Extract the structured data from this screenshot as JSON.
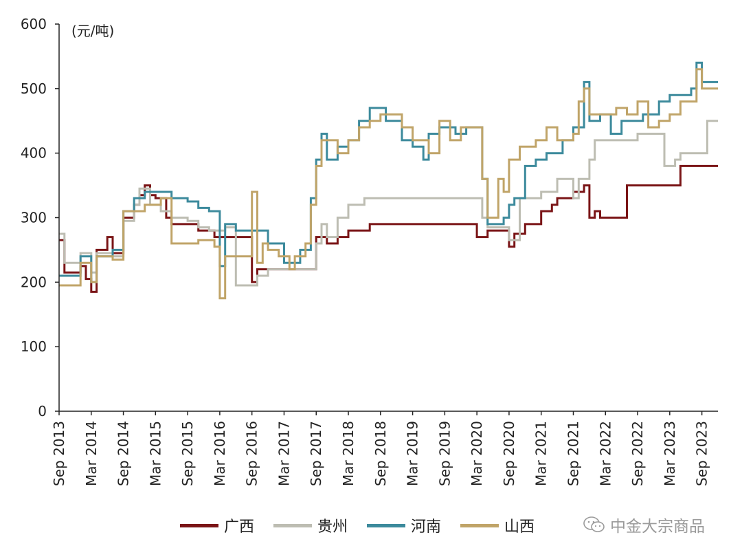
{
  "chart_data": {
    "type": "line",
    "ylabel": "(元/吨)",
    "ylim": [
      0,
      600
    ],
    "yticks": [
      0,
      100,
      200,
      300,
      400,
      500,
      600
    ],
    "xlim": [
      "2013-09",
      "2023-12"
    ],
    "xticks": [
      "Sep 2013",
      "Mar 2014",
      "Sep 2014",
      "Mar 2015",
      "Sep 2015",
      "Mar 2016",
      "Sep 2016",
      "Mar 2017",
      "Sep 2017",
      "Mar 2018",
      "Sep 2018",
      "Mar 2019",
      "Sep 2019",
      "Mar 2020",
      "Sep 2020",
      "Mar 2021",
      "Sep 2021",
      "Mar 2022",
      "Sep 2022",
      "Mar 2023",
      "Sep 2023"
    ],
    "grid": false,
    "legend_position": "bottom",
    "series": [
      {
        "name": "广西",
        "color": "#7a1416",
        "points": [
          [
            "2013-09",
            265
          ],
          [
            "2013-10",
            215
          ],
          [
            "2013-12",
            215
          ],
          [
            "2014-01",
            225
          ],
          [
            "2014-02",
            205
          ],
          [
            "2014-03",
            185
          ],
          [
            "2014-04",
            250
          ],
          [
            "2014-06",
            270
          ],
          [
            "2014-07",
            245
          ],
          [
            "2014-09",
            300
          ],
          [
            "2014-11",
            320
          ],
          [
            "2014-12",
            335
          ],
          [
            "2015-01",
            350
          ],
          [
            "2015-02",
            335
          ],
          [
            "2015-03",
            330
          ],
          [
            "2015-05",
            300
          ],
          [
            "2015-06",
            290
          ],
          [
            "2015-09",
            290
          ],
          [
            "2015-11",
            280
          ],
          [
            "2016-02",
            270
          ],
          [
            "2016-06",
            270
          ],
          [
            "2016-08",
            270
          ],
          [
            "2016-09",
            200
          ],
          [
            "2016-10",
            220
          ],
          [
            "2016-12",
            220
          ],
          [
            "2017-03",
            220
          ],
          [
            "2017-05",
            220
          ],
          [
            "2017-06",
            220
          ],
          [
            "2017-08",
            220
          ],
          [
            "2017-09",
            270
          ],
          [
            "2017-11",
            260
          ],
          [
            "2018-01",
            270
          ],
          [
            "2018-03",
            280
          ],
          [
            "2018-07",
            290
          ],
          [
            "2019-01",
            290
          ],
          [
            "2019-07",
            290
          ],
          [
            "2020-01",
            290
          ],
          [
            "2020-03",
            270
          ],
          [
            "2020-05",
            280
          ],
          [
            "2020-09",
            255
          ],
          [
            "2020-10",
            275
          ],
          [
            "2020-12",
            290
          ],
          [
            "2021-03",
            310
          ],
          [
            "2021-05",
            320
          ],
          [
            "2021-06",
            330
          ],
          [
            "2021-09",
            340
          ],
          [
            "2021-11",
            350
          ],
          [
            "2021-12",
            300
          ],
          [
            "2022-01",
            310
          ],
          [
            "2022-02",
            300
          ],
          [
            "2022-06",
            300
          ],
          [
            "2022-07",
            350
          ],
          [
            "2022-12",
            350
          ],
          [
            "2023-01",
            350
          ],
          [
            "2023-04",
            350
          ],
          [
            "2023-05",
            380
          ],
          [
            "2023-12",
            380
          ]
        ]
      },
      {
        "name": "贵州",
        "color": "#bdbdb2",
        "points": [
          [
            "2013-09",
            275
          ],
          [
            "2013-10",
            230
          ],
          [
            "2013-12",
            230
          ],
          [
            "2014-01",
            245
          ],
          [
            "2014-03",
            215
          ],
          [
            "2014-04",
            245
          ],
          [
            "2014-07",
            240
          ],
          [
            "2014-09",
            295
          ],
          [
            "2014-11",
            320
          ],
          [
            "2014-12",
            345
          ],
          [
            "2015-02",
            320
          ],
          [
            "2015-04",
            310
          ],
          [
            "2015-06",
            300
          ],
          [
            "2015-09",
            295
          ],
          [
            "2015-11",
            285
          ],
          [
            "2016-01",
            280
          ],
          [
            "2016-04",
            285
          ],
          [
            "2016-06",
            195
          ],
          [
            "2016-09",
            195
          ],
          [
            "2016-10",
            210
          ],
          [
            "2016-12",
            220
          ],
          [
            "2017-04",
            220
          ],
          [
            "2017-08",
            220
          ],
          [
            "2017-09",
            260
          ],
          [
            "2017-10",
            290
          ],
          [
            "2017-11",
            270
          ],
          [
            "2018-01",
            300
          ],
          [
            "2018-03",
            320
          ],
          [
            "2018-06",
            330
          ],
          [
            "2019-01",
            330
          ],
          [
            "2019-07",
            330
          ],
          [
            "2020-01",
            330
          ],
          [
            "2020-04",
            300
          ],
          [
            "2020-05",
            285
          ],
          [
            "2020-08",
            285
          ],
          [
            "2020-09",
            265
          ],
          [
            "2020-11",
            330
          ],
          [
            "2021-01",
            330
          ],
          [
            "2021-03",
            340
          ],
          [
            "2021-06",
            360
          ],
          [
            "2021-09",
            330
          ],
          [
            "2021-10",
            360
          ],
          [
            "2021-12",
            390
          ],
          [
            "2022-01",
            420
          ],
          [
            "2022-06",
            420
          ],
          [
            "2022-09",
            430
          ],
          [
            "2023-01",
            430
          ],
          [
            "2023-02",
            380
          ],
          [
            "2023-04",
            390
          ],
          [
            "2023-05",
            400
          ],
          [
            "2023-09",
            400
          ],
          [
            "2023-10",
            450
          ],
          [
            "2023-12",
            450
          ]
        ]
      },
      {
        "name": "河南",
        "color": "#3c8a9c",
        "points": [
          [
            "2013-09",
            210
          ],
          [
            "2013-12",
            210
          ],
          [
            "2014-01",
            240
          ],
          [
            "2014-03",
            200
          ],
          [
            "2014-04",
            240
          ],
          [
            "2014-07",
            250
          ],
          [
            "2014-09",
            310
          ],
          [
            "2014-11",
            330
          ],
          [
            "2015-01",
            340
          ],
          [
            "2015-04",
            340
          ],
          [
            "2015-06",
            330
          ],
          [
            "2015-09",
            325
          ],
          [
            "2015-11",
            315
          ],
          [
            "2016-01",
            310
          ],
          [
            "2016-03",
            225
          ],
          [
            "2016-04",
            290
          ],
          [
            "2016-06",
            280
          ],
          [
            "2016-09",
            280
          ],
          [
            "2016-12",
            260
          ],
          [
            "2017-03",
            230
          ],
          [
            "2017-06",
            250
          ],
          [
            "2017-08",
            330
          ],
          [
            "2017-09",
            390
          ],
          [
            "2017-10",
            430
          ],
          [
            "2017-11",
            390
          ],
          [
            "2018-01",
            410
          ],
          [
            "2018-03",
            420
          ],
          [
            "2018-05",
            450
          ],
          [
            "2018-07",
            470
          ],
          [
            "2018-10",
            450
          ],
          [
            "2019-01",
            420
          ],
          [
            "2019-03",
            410
          ],
          [
            "2019-05",
            390
          ],
          [
            "2019-06",
            430
          ],
          [
            "2019-08",
            440
          ],
          [
            "2019-11",
            430
          ],
          [
            "2020-01",
            440
          ],
          [
            "2020-03",
            440
          ],
          [
            "2020-04",
            360
          ],
          [
            "2020-05",
            290
          ],
          [
            "2020-08",
            300
          ],
          [
            "2020-09",
            320
          ],
          [
            "2020-10",
            330
          ],
          [
            "2020-12",
            380
          ],
          [
            "2021-02",
            390
          ],
          [
            "2021-04",
            400
          ],
          [
            "2021-07",
            420
          ],
          [
            "2021-09",
            440
          ],
          [
            "2021-11",
            510
          ],
          [
            "2021-12",
            450
          ],
          [
            "2022-02",
            460
          ],
          [
            "2022-04",
            430
          ],
          [
            "2022-06",
            450
          ],
          [
            "2022-10",
            460
          ],
          [
            "2023-01",
            480
          ],
          [
            "2023-03",
            490
          ],
          [
            "2023-07",
            500
          ],
          [
            "2023-08",
            540
          ],
          [
            "2023-09",
            510
          ],
          [
            "2023-12",
            510
          ]
        ]
      },
      {
        "name": "山西",
        "color": "#c0a468",
        "points": [
          [
            "2013-09",
            195
          ],
          [
            "2013-12",
            195
          ],
          [
            "2014-01",
            230
          ],
          [
            "2014-03",
            200
          ],
          [
            "2014-04",
            240
          ],
          [
            "2014-07",
            235
          ],
          [
            "2014-09",
            310
          ],
          [
            "2014-11",
            310
          ],
          [
            "2015-01",
            320
          ],
          [
            "2015-04",
            330
          ],
          [
            "2015-06",
            260
          ],
          [
            "2015-09",
            260
          ],
          [
            "2015-11",
            265
          ],
          [
            "2016-02",
            255
          ],
          [
            "2016-03",
            175
          ],
          [
            "2016-04",
            240
          ],
          [
            "2016-07",
            240
          ],
          [
            "2016-09",
            340
          ],
          [
            "2016-10",
            230
          ],
          [
            "2016-11",
            260
          ],
          [
            "2016-12",
            250
          ],
          [
            "2017-02",
            240
          ],
          [
            "2017-04",
            220
          ],
          [
            "2017-05",
            240
          ],
          [
            "2017-07",
            260
          ],
          [
            "2017-08",
            320
          ],
          [
            "2017-09",
            380
          ],
          [
            "2017-10",
            420
          ],
          [
            "2017-12",
            420
          ],
          [
            "2018-01",
            400
          ],
          [
            "2018-03",
            420
          ],
          [
            "2018-05",
            440
          ],
          [
            "2018-07",
            450
          ],
          [
            "2018-09",
            460
          ],
          [
            "2019-01",
            440
          ],
          [
            "2019-03",
            420
          ],
          [
            "2019-06",
            400
          ],
          [
            "2019-08",
            450
          ],
          [
            "2019-10",
            420
          ],
          [
            "2019-12",
            440
          ],
          [
            "2020-03",
            440
          ],
          [
            "2020-04",
            360
          ],
          [
            "2020-05",
            300
          ],
          [
            "2020-07",
            360
          ],
          [
            "2020-08",
            340
          ],
          [
            "2020-09",
            390
          ],
          [
            "2020-11",
            410
          ],
          [
            "2021-02",
            420
          ],
          [
            "2021-04",
            440
          ],
          [
            "2021-06",
            420
          ],
          [
            "2021-09",
            430
          ],
          [
            "2021-10",
            480
          ],
          [
            "2021-11",
            500
          ],
          [
            "2021-12",
            460
          ],
          [
            "2022-03",
            460
          ],
          [
            "2022-05",
            470
          ],
          [
            "2022-07",
            460
          ],
          [
            "2022-09",
            480
          ],
          [
            "2022-11",
            440
          ],
          [
            "2023-01",
            450
          ],
          [
            "2023-03",
            460
          ],
          [
            "2023-05",
            480
          ],
          [
            "2023-08",
            530
          ],
          [
            "2023-09",
            500
          ],
          [
            "2023-12",
            500
          ]
        ]
      }
    ]
  },
  "watermark": {
    "text": "中金大宗商品",
    "icon": "wechat-icon",
    "color": "#9a9a9a"
  }
}
